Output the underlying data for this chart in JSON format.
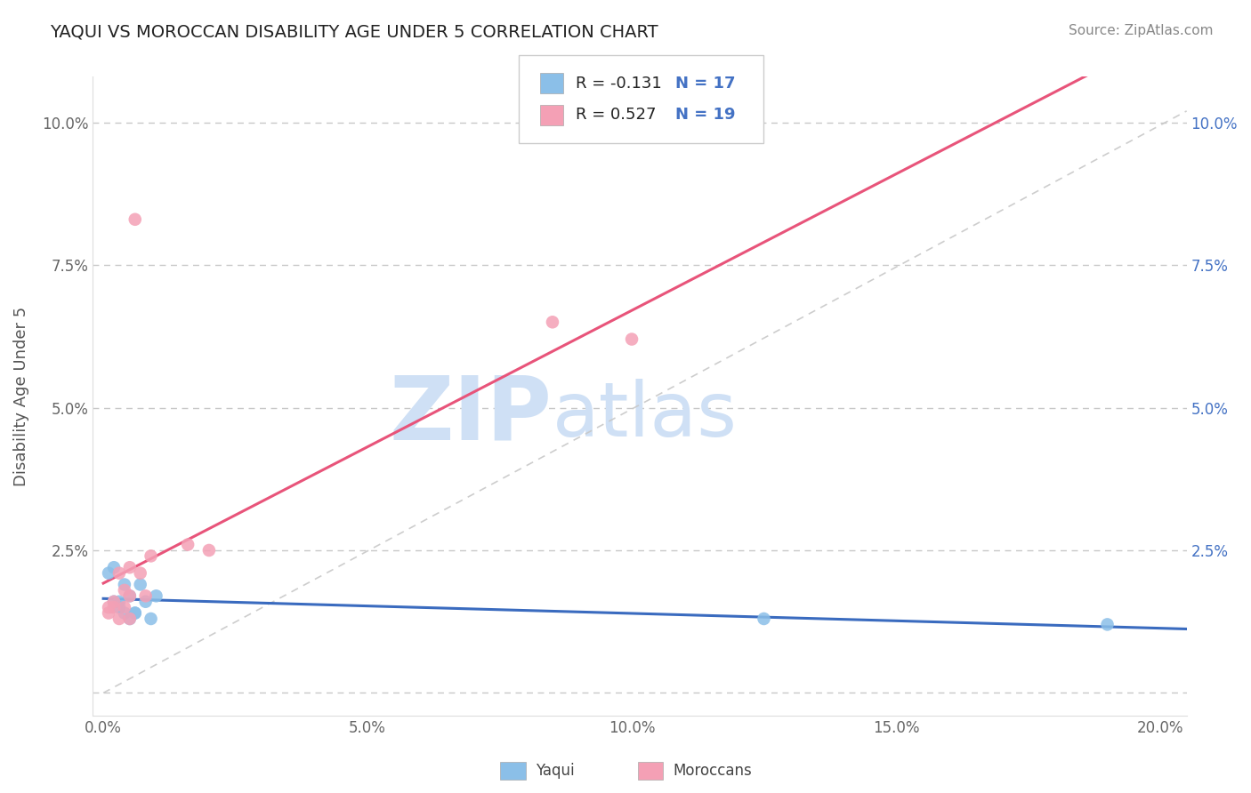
{
  "title": "YAQUI VS MOROCCAN DISABILITY AGE UNDER 5 CORRELATION CHART",
  "source": "Source: ZipAtlas.com",
  "ylabel": "Disability Age Under 5",
  "yaqui_color": "#8bbfe8",
  "moroccan_color": "#f4a0b5",
  "yaqui_line_color": "#3a6bbf",
  "moroccan_line_color": "#e8547a",
  "ref_line_color": "#c8c8c8",
  "R_yaqui": -0.131,
  "N_yaqui": 17,
  "R_moroccan": 0.527,
  "N_moroccan": 19,
  "xlim": [
    -0.002,
    0.205
  ],
  "ylim": [
    -0.004,
    0.108
  ],
  "xticks": [
    0.0,
    0.05,
    0.1,
    0.15,
    0.2
  ],
  "yticks": [
    0.0,
    0.025,
    0.05,
    0.075,
    0.1
  ],
  "xticklabels": [
    "0.0%",
    "5.0%",
    "10.0%",
    "15.0%",
    "20.0%"
  ],
  "left_yticklabels": [
    "",
    "2.5%",
    "5.0%",
    "7.5%",
    "10.0%"
  ],
  "right_yticklabels": [
    "2.5%",
    "5.0%",
    "7.5%",
    "10.0%"
  ],
  "background_color": "#ffffff",
  "grid_color": "#c8c8c8",
  "yaqui_x": [
    0.001,
    0.002,
    0.002,
    0.003,
    0.003,
    0.004,
    0.004,
    0.005,
    0.005,
    0.006,
    0.006,
    0.007,
    0.008,
    0.009,
    0.01,
    0.125,
    0.19
  ],
  "yaqui_y": [
    0.021,
    0.022,
    0.016,
    0.016,
    0.015,
    0.019,
    0.014,
    0.017,
    0.013,
    0.014,
    0.014,
    0.019,
    0.016,
    0.013,
    0.017,
    0.013,
    0.012
  ],
  "moroccan_x": [
    0.001,
    0.001,
    0.002,
    0.002,
    0.003,
    0.003,
    0.004,
    0.004,
    0.005,
    0.005,
    0.005,
    0.006,
    0.007,
    0.008,
    0.009,
    0.016,
    0.02,
    0.085,
    0.1
  ],
  "moroccan_y": [
    0.014,
    0.015,
    0.015,
    0.016,
    0.013,
    0.021,
    0.015,
    0.018,
    0.013,
    0.017,
    0.022,
    0.083,
    0.021,
    0.017,
    0.024,
    0.026,
    0.025,
    0.065,
    0.062
  ],
  "watermark_zip": "ZIP",
  "watermark_atlas": "atlas",
  "watermark_color": "#cfe0f5",
  "legend_label_yaqui": "Yaqui",
  "legend_label_moroccan": "Moroccans"
}
